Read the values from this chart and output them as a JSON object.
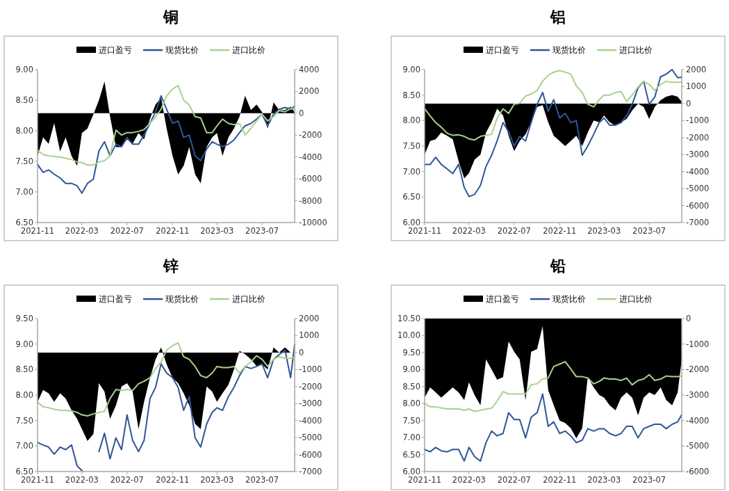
{
  "chart_data": [
    {
      "type": "line",
      "title": "铜",
      "legend": "top",
      "x": [
        "2021-11-01",
        "2021-11-16",
        "2021-12-01",
        "2021-12-16",
        "2022-01-01",
        "2022-01-16",
        "2022-02-01",
        "2022-02-16",
        "2022-03-01",
        "2022-03-16",
        "2022-04-01",
        "2022-04-16",
        "2022-05-01",
        "2022-05-16",
        "2022-06-01",
        "2022-06-16",
        "2022-07-01",
        "2022-07-16",
        "2022-08-01",
        "2022-08-16",
        "2022-09-01",
        "2022-09-16",
        "2022-10-01",
        "2022-10-16",
        "2022-11-01",
        "2022-11-16",
        "2022-12-01",
        "2022-12-16",
        "2023-01-01",
        "2023-01-16",
        "2023-02-01",
        "2023-02-16",
        "2023-03-01",
        "2023-03-16",
        "2023-04-01",
        "2023-04-16",
        "2023-05-01",
        "2023-05-16",
        "2023-06-01",
        "2023-06-16",
        "2023-07-01",
        "2023-07-16",
        "2023-08-01",
        "2023-08-16",
        "2023-09-01",
        "2023-09-16",
        "2023-09-27"
      ],
      "xlim": [
        "2021-11-01",
        "2023-09-27"
      ],
      "xticks": [
        "2021-11",
        "2022-03",
        "2022-07",
        "2022-11",
        "2023-03",
        "2023-07"
      ],
      "ylim": [
        6.5,
        9
      ],
      "yticks": [
        {
          "value": 6.5,
          "label": "6.50"
        },
        {
          "value": 7,
          "label": "7.00"
        },
        {
          "value": 7.5,
          "label": "7.50"
        },
        {
          "value": 8,
          "label": "8.00"
        },
        {
          "value": 8.5,
          "label": "8.50"
        },
        {
          "value": 9,
          "label": "9.00"
        }
      ],
      "y2lim": [
        -10000,
        4000
      ],
      "y2ticks": [
        -10000,
        -8000,
        -6000,
        -4000,
        -2000,
        0,
        2000,
        4000
      ],
      "series": [
        {
          "name": "进口盈亏",
          "type": "area",
          "axis": "y2",
          "color": "#000000",
          "values": [
            -3900,
            -2200,
            -2800,
            -900,
            -3500,
            -2200,
            -3900,
            -4800,
            -1800,
            -1400,
            -100,
            1200,
            2900,
            -300,
            -3100,
            -3100,
            -2400,
            -2800,
            -1800,
            -2400,
            -500,
            800,
            1400,
            -1400,
            -3900,
            -5600,
            -4800,
            -3100,
            -5600,
            -6400,
            -3100,
            -2200,
            -1800,
            -3900,
            -2200,
            -1400,
            -300,
            1600,
            300,
            800,
            100,
            -1400,
            1000,
            300,
            300,
            600,
            100
          ]
        },
        {
          "name": "现货比价",
          "type": "line",
          "color": "#2f5597",
          "values": [
            7.45,
            7.32,
            7.36,
            7.29,
            7.23,
            7.14,
            7.14,
            7.1,
            6.98,
            7.14,
            7.21,
            7.67,
            7.82,
            7.59,
            7.78,
            7.74,
            7.89,
            7.78,
            7.78,
            7.93,
            8.12,
            8.31,
            8.57,
            8.35,
            8.12,
            8.16,
            7.89,
            7.93,
            7.59,
            7.51,
            7.7,
            7.82,
            7.78,
            7.74,
            7.78,
            7.85,
            7.97,
            8.08,
            8.12,
            8.19,
            8.27,
            8.08,
            8.27,
            8.35,
            8.38,
            8.35,
            8.4
          ]
        },
        {
          "name": "进口比价",
          "type": "line",
          "color": "#a9d18e",
          "values": [
            7.68,
            7.61,
            7.59,
            7.58,
            7.57,
            7.55,
            7.53,
            7.49,
            7.48,
            7.44,
            7.44,
            7.49,
            7.51,
            7.59,
            8.01,
            7.93,
            7.97,
            7.97,
            7.99,
            8.02,
            8.12,
            8.23,
            8.35,
            8.57,
            8.68,
            8.74,
            8.5,
            8.42,
            8.23,
            8.21,
            7.97,
            7.97,
            8.08,
            8.19,
            8.12,
            8.1,
            8.12,
            7.93,
            8.04,
            8.16,
            8.27,
            8.16,
            8.23,
            8.33,
            8.31,
            8.36,
            8.35
          ]
        }
      ]
    },
    {
      "type": "line",
      "title": "铝",
      "legend": "top",
      "x": [
        "2021-11-01",
        "2021-11-16",
        "2021-12-01",
        "2021-12-16",
        "2022-01-01",
        "2022-01-16",
        "2022-02-01",
        "2022-02-16",
        "2022-03-01",
        "2022-03-16",
        "2022-04-01",
        "2022-04-16",
        "2022-05-01",
        "2022-05-16",
        "2022-06-01",
        "2022-06-16",
        "2022-07-01",
        "2022-07-16",
        "2022-08-01",
        "2022-08-16",
        "2022-09-01",
        "2022-09-16",
        "2022-10-01",
        "2022-10-16",
        "2022-11-01",
        "2022-11-16",
        "2022-12-01",
        "2022-12-16",
        "2023-01-01",
        "2023-01-16",
        "2023-02-01",
        "2023-02-16",
        "2023-03-01",
        "2023-03-16",
        "2023-04-01",
        "2023-04-16",
        "2023-05-01",
        "2023-05-16",
        "2023-06-01",
        "2023-06-16",
        "2023-07-01",
        "2023-07-16",
        "2023-08-01",
        "2023-08-16",
        "2023-09-01",
        "2023-09-16",
        "2023-09-27"
      ],
      "xlim": [
        "2021-11-01",
        "2023-09-27"
      ],
      "xticks": [
        "2021-11",
        "2022-03",
        "2022-07",
        "2022-11",
        "2023-03",
        "2023-07"
      ],
      "ylim": [
        6,
        9
      ],
      "yticks": [
        {
          "value": 6,
          "label": "6.00"
        },
        {
          "value": 6.5,
          "label": "6.50"
        },
        {
          "value": 7,
          "label": "7.00"
        },
        {
          "value": 7.5,
          "label": "7.50"
        },
        {
          "value": 8,
          "label": "8.00"
        },
        {
          "value": 8.5,
          "label": "8.50"
        },
        {
          "value": 9,
          "label": "9.00"
        }
      ],
      "y2lim": [
        -7000,
        2000
      ],
      "y2ticks": [
        -7000,
        -6000,
        -5000,
        -4000,
        -3000,
        -2000,
        -1000,
        0,
        1000,
        2000
      ],
      "series": [
        {
          "name": "进口盈亏",
          "type": "area",
          "axis": "y2",
          "color": "#000000",
          "values": [
            -3000,
            -2200,
            -2100,
            -1700,
            -1900,
            -2100,
            -3400,
            -4400,
            -4100,
            -3300,
            -3000,
            -1700,
            -1100,
            -300,
            -700,
            -1900,
            -2800,
            -2200,
            -1800,
            -1100,
            -200,
            -100,
            -1100,
            -1900,
            -2200,
            -2500,
            -2200,
            -1900,
            -2500,
            -1700,
            -1000,
            -1100,
            -700,
            -1100,
            -1300,
            -1100,
            -900,
            -400,
            0,
            -200,
            -900,
            -200,
            200,
            400,
            500,
            400,
            100
          ]
        },
        {
          "name": "现货比价",
          "type": "line",
          "color": "#2f5597",
          "values": [
            7.14,
            7.14,
            7.28,
            7.14,
            7.05,
            6.96,
            7.14,
            6.69,
            6.51,
            6.55,
            6.73,
            7.1,
            7.32,
            7.6,
            7.96,
            7.78,
            7.5,
            7.69,
            7.6,
            7.96,
            8.32,
            8.55,
            8.18,
            8.41,
            8.05,
            8.14,
            7.96,
            8.0,
            7.32,
            7.5,
            7.73,
            7.96,
            8.05,
            7.91,
            7.91,
            7.96,
            8.09,
            8.32,
            8.64,
            8.77,
            8.32,
            8.46,
            8.86,
            8.91,
            9.0,
            8.84,
            8.85
          ]
        },
        {
          "name": "进口比价",
          "type": "line",
          "color": "#a9d18e",
          "values": [
            8.23,
            8.09,
            7.96,
            7.87,
            7.75,
            7.71,
            7.72,
            7.69,
            7.64,
            7.62,
            7.69,
            7.71,
            7.73,
            8.05,
            8.23,
            8.14,
            8.32,
            8.34,
            8.48,
            8.52,
            8.59,
            8.77,
            8.89,
            8.95,
            8.98,
            8.95,
            8.91,
            8.68,
            8.55,
            8.32,
            8.27,
            8.41,
            8.5,
            8.5,
            8.55,
            8.57,
            8.37,
            8.5,
            8.66,
            8.77,
            8.71,
            8.59,
            8.71,
            8.77,
            8.75,
            8.75,
            8.75
          ]
        }
      ]
    },
    {
      "type": "line",
      "title": "锌",
      "legend": "top",
      "x": [
        "2021-11-01",
        "2021-11-16",
        "2021-12-01",
        "2021-12-16",
        "2022-01-01",
        "2022-01-16",
        "2022-02-01",
        "2022-02-16",
        "2022-03-01",
        "2022-03-16",
        "2022-04-01",
        "2022-04-16",
        "2022-05-01",
        "2022-05-16",
        "2022-06-01",
        "2022-06-16",
        "2022-07-01",
        "2022-07-16",
        "2022-08-01",
        "2022-08-16",
        "2022-09-01",
        "2022-09-16",
        "2022-10-01",
        "2022-10-16",
        "2022-11-01",
        "2022-11-16",
        "2022-12-01",
        "2022-12-16",
        "2023-01-01",
        "2023-01-16",
        "2023-02-01",
        "2023-02-16",
        "2023-03-01",
        "2023-03-16",
        "2023-04-01",
        "2023-04-16",
        "2023-05-01",
        "2023-05-16",
        "2023-06-01",
        "2023-06-16",
        "2023-07-01",
        "2023-07-16",
        "2023-08-01",
        "2023-08-16",
        "2023-09-01",
        "2023-09-16",
        "2023-09-27"
      ],
      "xlim": [
        "2021-11-01",
        "2023-09-27"
      ],
      "xticks": [
        "2021-11",
        "2022-03",
        "2022-07",
        "2022-11",
        "2023-03",
        "2023-07"
      ],
      "ylim": [
        6.5,
        9.5
      ],
      "yticks": [
        {
          "value": 6.5,
          "label": "6.50"
        },
        {
          "value": 7,
          "label": "7.00"
        },
        {
          "value": 7.5,
          "label": "7.50"
        },
        {
          "value": 8,
          "label": "8.00"
        },
        {
          "value": 8.5,
          "label": "8.50"
        },
        {
          "value": 9,
          "label": "9.00"
        },
        {
          "value": 9.5,
          "label": "9.50"
        }
      ],
      "y2lim": [
        -7000,
        2000
      ],
      "y2ticks": [
        -7000,
        -6000,
        -5000,
        -4000,
        -3000,
        -2000,
        -1000,
        0,
        1000,
        2000
      ],
      "series": [
        {
          "name": "进口盈亏",
          "type": "area",
          "axis": "y2",
          "color": "#000000",
          "values": [
            -2900,
            -2200,
            -2400,
            -2900,
            -2400,
            -2700,
            -3400,
            -3900,
            -4500,
            -5200,
            -4800,
            -1800,
            -2300,
            -3900,
            -3100,
            -2000,
            -1800,
            -2300,
            -4500,
            -2900,
            -1500,
            -400,
            300,
            -700,
            -1500,
            -1800,
            -2400,
            -3100,
            -4200,
            -4500,
            -2000,
            -2300,
            -2900,
            -2400,
            -1900,
            -1000,
            100,
            -100,
            -400,
            -800,
            -700,
            -1000,
            300,
            0,
            300,
            0,
            0
          ]
        },
        {
          "name": "现货比价",
          "type": "line",
          "color": "#2f5597",
          "values": [
            7.07,
            7.02,
            6.98,
            6.84,
            6.98,
            6.93,
            7.02,
            6.61,
            6.52,
            null,
            null,
            6.89,
            7.25,
            6.75,
            7.16,
            6.93,
            7.61,
            7.11,
            6.89,
            7.11,
            7.93,
            8.15,
            8.61,
            8.43,
            8.34,
            8.15,
            7.7,
            7.97,
            7.16,
            6.98,
            7.43,
            7.66,
            7.75,
            7.7,
            7.97,
            8.15,
            8.38,
            8.56,
            8.52,
            8.56,
            8.61,
            8.34,
            8.7,
            8.79,
            8.88,
            8.34,
            8.99
          ]
        },
        {
          "name": "进口比价",
          "type": "line",
          "color": "#a9d18e",
          "values": [
            7.86,
            7.77,
            7.75,
            7.72,
            7.7,
            7.7,
            7.69,
            7.66,
            7.61,
            7.59,
            7.63,
            7.66,
            7.68,
            7.93,
            8.11,
            8.09,
            8.11,
            8.09,
            8.22,
            8.27,
            8.34,
            8.52,
            8.65,
            8.88,
            8.97,
            9.02,
            8.75,
            8.7,
            8.56,
            8.38,
            8.34,
            8.43,
            8.56,
            8.54,
            8.54,
            8.56,
            8.43,
            8.56,
            8.65,
            8.77,
            8.7,
            8.56,
            8.7,
            8.75,
            8.72,
            8.72,
            8.75
          ]
        }
      ]
    },
    {
      "type": "line",
      "title": "铅",
      "legend": "top",
      "x": [
        "2021-11-01",
        "2021-11-16",
        "2021-12-01",
        "2021-12-16",
        "2022-01-01",
        "2022-01-16",
        "2022-02-01",
        "2022-02-16",
        "2022-03-01",
        "2022-03-16",
        "2022-04-01",
        "2022-04-16",
        "2022-05-01",
        "2022-05-16",
        "2022-06-01",
        "2022-06-16",
        "2022-07-01",
        "2022-07-16",
        "2022-08-01",
        "2022-08-16",
        "2022-09-01",
        "2022-09-16",
        "2022-10-01",
        "2022-10-16",
        "2022-11-01",
        "2022-11-16",
        "2022-12-01",
        "2022-12-16",
        "2023-01-01",
        "2023-01-16",
        "2023-02-01",
        "2023-02-16",
        "2023-03-01",
        "2023-03-16",
        "2023-04-01",
        "2023-04-16",
        "2023-05-01",
        "2023-05-16",
        "2023-06-01",
        "2023-06-16",
        "2023-07-01",
        "2023-07-16",
        "2023-08-01",
        "2023-08-16",
        "2023-09-01",
        "2023-09-16",
        "2023-09-27"
      ],
      "xlim": [
        "2021-11-01",
        "2023-09-27"
      ],
      "xticks": [
        "2021-11",
        "2022-03",
        "2022-07",
        "2022-11",
        "2023-03",
        "2023-07"
      ],
      "ylim": [
        6,
        10.5
      ],
      "yticks": [
        {
          "value": 6,
          "label": "6.00"
        },
        {
          "value": 6.5,
          "label": "6.50"
        },
        {
          "value": 7,
          "label": "7.00"
        },
        {
          "value": 7.5,
          "label": "7.50"
        },
        {
          "value": 8,
          "label": "8.00"
        },
        {
          "value": 8.5,
          "label": "8.50"
        },
        {
          "value": 9,
          "label": "9.00"
        },
        {
          "value": 9.5,
          "label": "9.50"
        },
        {
          "value": 10,
          "label": "10.00"
        },
        {
          "value": 10.5,
          "label": "10.50"
        }
      ],
      "y2lim": [
        -6000,
        0
      ],
      "y2ticks": [
        -6000,
        -5000,
        -4000,
        -3000,
        -2000,
        -1000,
        0
      ],
      "series": [
        {
          "name": "进口盈亏",
          "type": "area",
          "axis": "y2",
          "color": "#000000",
          "values": [
            -3100,
            -2700,
            -2900,
            -3100,
            -2900,
            -2700,
            -2900,
            -3200,
            -2500,
            -3000,
            -3400,
            -1600,
            -2000,
            -2400,
            -2300,
            -900,
            -1300,
            -1600,
            -3200,
            -1300,
            -1200,
            -300,
            -2800,
            -3400,
            -4000,
            -4100,
            -4300,
            -4700,
            -4300,
            -2300,
            -2700,
            -3000,
            -3100,
            -3400,
            -3600,
            -3100,
            -2900,
            -3100,
            -3800,
            -3100,
            -2900,
            -3000,
            -2700,
            -3200,
            -3400,
            -2900,
            -1600
          ]
        },
        {
          "name": "现货比价",
          "type": "line",
          "color": "#2f5597",
          "values": [
            6.65,
            6.58,
            6.71,
            6.61,
            6.58,
            6.65,
            6.65,
            6.31,
            6.71,
            6.44,
            6.31,
            6.85,
            7.19,
            7.05,
            7.12,
            7.73,
            7.53,
            7.53,
            6.99,
            7.6,
            7.73,
            8.28,
            7.33,
            7.46,
            7.12,
            7.19,
            7.05,
            6.85,
            6.92,
            7.26,
            7.19,
            7.26,
            7.26,
            7.12,
            7.05,
            7.12,
            7.33,
            7.33,
            6.99,
            7.26,
            7.33,
            7.39,
            7.39,
            7.26,
            7.39,
            7.46,
            7.67
          ]
        },
        {
          "name": "进口比价",
          "type": "line",
          "color": "#a9d18e",
          "values": [
            8.01,
            7.9,
            7.9,
            7.87,
            7.84,
            7.84,
            7.84,
            7.8,
            7.84,
            7.77,
            7.8,
            7.84,
            7.86,
            8.07,
            8.35,
            8.28,
            8.28,
            8.28,
            8.28,
            8.55,
            8.58,
            8.72,
            8.75,
            9.09,
            9.16,
            9.23,
            9.02,
            8.79,
            8.79,
            8.75,
            8.58,
            8.65,
            8.75,
            8.72,
            8.72,
            8.68,
            8.75,
            8.55,
            8.68,
            8.72,
            8.85,
            8.68,
            8.72,
            8.81,
            8.79,
            8.79,
            8.81
          ]
        }
      ]
    }
  ]
}
